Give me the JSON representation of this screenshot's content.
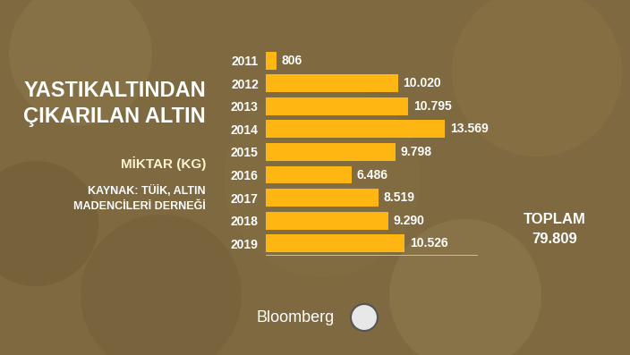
{
  "chart_data": {
    "type": "bar",
    "orientation": "horizontal",
    "title": "YASTIKALTINDAN\nÇIKARILAN ALTIN",
    "subtitle": "MİKTAR (KG)",
    "source": "KAYNAK: TÜİK, ALTIN\nMADENCİLERİ DERNEĞİ",
    "total_label": "TOPLAM",
    "total": 79809,
    "total_value_label": "79.809",
    "footer": "Bloomberg",
    "categories": [
      "2011",
      "2012",
      "2013",
      "2014",
      "2015",
      "2016",
      "2017",
      "2018",
      "2019"
    ],
    "values": [
      806,
      10020,
      10795,
      13569,
      9798,
      6486,
      8519,
      9290,
      10526
    ],
    "value_labels": [
      "806",
      "10.020",
      "10.795",
      "13.569",
      "9.798",
      "6.486",
      "8.519",
      "9.290",
      "10.526"
    ],
    "color": "#ffb612",
    "xlim": [
      0,
      16000
    ],
    "xticks": [],
    "data_labels": true,
    "tick_labels": "y",
    "grid": false
  }
}
